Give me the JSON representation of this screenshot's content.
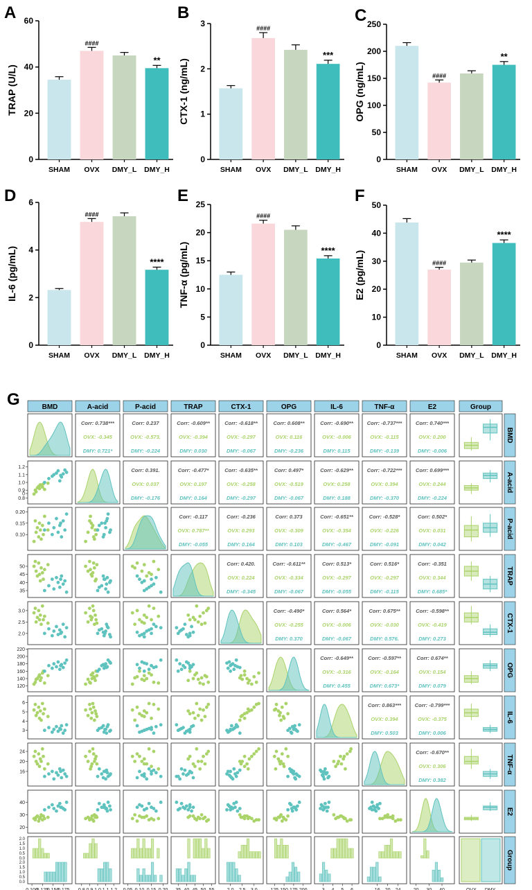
{
  "figure": {
    "section_g_label": "G"
  },
  "colors": {
    "SHAM": "#c8e6ec",
    "OVX": "#f9d7da",
    "DMY_L": "#c7d7bf",
    "DMY_H": "#3fbcbc",
    "ovx_green": "#aad36a",
    "dmy_teal": "#5ec2be",
    "header_blue": "#9dd3e8"
  },
  "chart_data": [
    {
      "id": "A",
      "type": "bar",
      "label": "A",
      "ylabel": "TRAP (U/L)",
      "categories": [
        "SHAM",
        "OVX",
        "DMY_L",
        "DMY_H"
      ],
      "values": [
        34.5,
        47.0,
        45.0,
        39.5
      ],
      "errors": [
        1.3,
        1.5,
        1.3,
        1.2
      ],
      "ylim": [
        0,
        60
      ],
      "yticks": [
        0,
        20,
        40,
        60
      ],
      "annotations": [
        "",
        "####",
        "",
        "**"
      ]
    },
    {
      "id": "B",
      "type": "bar",
      "label": "B",
      "ylabel": "CTX-1 (ng/mL)",
      "categories": [
        "SHAM",
        "OVX",
        "DMY_L",
        "DMY_H"
      ],
      "values": [
        1.57,
        2.68,
        2.42,
        2.11
      ],
      "errors": [
        0.06,
        0.12,
        0.11,
        0.08
      ],
      "ylim": [
        0,
        3
      ],
      "yticks": [
        0,
        1,
        2,
        3
      ],
      "annotations": [
        "",
        "####",
        "",
        "***"
      ]
    },
    {
      "id": "C",
      "type": "bar",
      "label": "C",
      "ylabel": "OPG (ng/mL)",
      "categories": [
        "SHAM",
        "OVX",
        "DMY_L",
        "DMY_H"
      ],
      "values": [
        210,
        142,
        159,
        175
      ],
      "errors": [
        6,
        5,
        5,
        6
      ],
      "ylim": [
        0,
        250
      ],
      "yticks": [
        0,
        50,
        100,
        150,
        200,
        250
      ],
      "annotations": [
        "",
        "####",
        "",
        "**"
      ]
    },
    {
      "id": "D",
      "type": "bar",
      "label": "D",
      "ylabel": "IL-6 (pg/mL)",
      "categories": [
        "SHAM",
        "OVX",
        "DMY_L",
        "DMY_H"
      ],
      "values": [
        2.32,
        5.18,
        5.42,
        3.17
      ],
      "errors": [
        0.06,
        0.14,
        0.14,
        0.11
      ],
      "ylim": [
        0,
        6
      ],
      "yticks": [
        0,
        2,
        4,
        6
      ],
      "annotations": [
        "",
        "####",
        "",
        "****"
      ]
    },
    {
      "id": "E",
      "type": "bar",
      "label": "E",
      "ylabel": "TNF-α (pg/mL)",
      "categories": [
        "SHAM",
        "OVX",
        "DMY_L",
        "DMY_H"
      ],
      "values": [
        12.5,
        21.6,
        20.5,
        15.4
      ],
      "errors": [
        0.5,
        0.6,
        0.7,
        0.5
      ],
      "ylim": [
        0,
        25
      ],
      "yticks": [
        0,
        5,
        10,
        15,
        20,
        25
      ],
      "annotations": [
        "",
        "####",
        "",
        "****"
      ]
    },
    {
      "id": "F",
      "type": "bar",
      "label": "F",
      "ylabel": "E2 (pg/mL)",
      "categories": [
        "SHAM",
        "OVX",
        "DMY_L",
        "DMY_H"
      ],
      "values": [
        43.8,
        27.0,
        29.5,
        36.5
      ],
      "errors": [
        1.4,
        0.8,
        0.9,
        1.1
      ],
      "ylim": [
        0,
        50
      ],
      "yticks": [
        0,
        10,
        20,
        30,
        40,
        50
      ],
      "annotations": [
        "",
        "####",
        "",
        "****"
      ]
    },
    {
      "id": "G",
      "type": "scatter",
      "label": "G",
      "subtype": "pair-plot",
      "variables": [
        "BMD",
        "A-acid",
        "P-acid",
        "TRAP",
        "CTX-1",
        "OPG",
        "IL-6",
        "TNF-α",
        "E2",
        "Group"
      ],
      "groups": [
        "OVX",
        "DMY"
      ],
      "upper": [
        [
          null,
          "Corr: 0.738***",
          "Corr: 0.237",
          "Corr: -0.609**",
          "Corr: -0.618**",
          "Corr: 0.608**",
          "Corr: -0.690**",
          "Corr: -0.737***",
          "Corr: 0.740***"
        ],
        [
          null,
          null,
          "Corr: 0.391.",
          "Corr: -0.477*",
          "Corr: -0.635**",
          "Corr: 0.497*",
          "Corr: -0.629**",
          "Corr: -0.722***",
          "Corr: 0.699***"
        ],
        [
          null,
          null,
          null,
          "Corr: -0.117",
          "Corr: -0.236",
          "Corr: 0.373",
          "Corr: -0.651**",
          "Corr: -0.528*",
          "Corr: 0.502*"
        ],
        [
          null,
          null,
          null,
          null,
          "Corr: 0.420.",
          "Corr: -0.611**",
          "Corr: 0.513*",
          "Corr: 0.516*",
          "Corr: -0.351"
        ],
        [
          null,
          null,
          null,
          null,
          null,
          "Corr: -0.490*",
          "Corr: 0.564*",
          "Corr: 0.675**",
          "Corr: -0.598**"
        ],
        [
          null,
          null,
          null,
          null,
          null,
          null,
          "Corr: -0.649**",
          "Corr: -0.597**",
          "Corr: 0.674**"
        ],
        [
          null,
          null,
          null,
          null,
          null,
          null,
          null,
          "Corr: 0.863***",
          "Corr: -0.799***"
        ],
        [
          null,
          null,
          null,
          null,
          null,
          null,
          null,
          null,
          "Corr: -0.670**"
        ]
      ],
      "upper_ovx": [
        [
          null,
          "OVX: -0.345",
          "OVX: -0.573.",
          "OVX: -0.394",
          "OVX: -0.297",
          "OVX: 0.116",
          "OVX: -0.006",
          "OVX: -0.115",
          "OVX: 0.200"
        ],
        [
          null,
          null,
          "OVX: 0.037",
          "OVX: 0.197",
          "OVX: -0.258",
          "OVX: -0.519",
          "OVX: 0.258",
          "OVX: 0.394",
          "OVX: 0.244"
        ],
        [
          null,
          null,
          null,
          "OVX: 0.787**",
          "OVX: 0.293",
          "OVX: -0.309",
          "OVX: -0.354",
          "OVX: -0.226",
          "OVX: 0.031"
        ],
        [
          null,
          null,
          null,
          null,
          "OVX: 0.224",
          "OVX: -0.334",
          "OVX: -0.297",
          "OVX: -0.297",
          "OVX: 0.344"
        ],
        [
          null,
          null,
          null,
          null,
          null,
          "OVX: -0.255",
          "OVX: -0.006",
          "OVX: -0.030",
          "OVX: -0.419"
        ],
        [
          null,
          null,
          null,
          null,
          null,
          null,
          "OVX: -0.316",
          "OVX: -0.164",
          "OVX: 0.154"
        ],
        [
          null,
          null,
          null,
          null,
          null,
          null,
          null,
          "OVX: 0.394",
          "OVX: -0.375"
        ],
        [
          null,
          null,
          null,
          null,
          null,
          null,
          null,
          null,
          "OVX: 0.306"
        ]
      ],
      "upper_dmy": [
        [
          null,
          "DMY: 0.721*",
          "DMY: -0.224",
          "DMY: 0.030",
          "DMY: -0.067",
          "DMY: -0.236",
          "DMY: 0.115",
          "DMY: -0.139",
          "DMY: -0.006"
        ],
        [
          null,
          null,
          "DMY: -0.176",
          "DMY: 0.164",
          "DMY: -0.297",
          "DMY: -0.067",
          "DMY: 0.188",
          "DMY: -0.370",
          "DMY: -0.224"
        ],
        [
          null,
          null,
          null,
          "DMY: -0.055",
          "DMY: 0.164",
          "DMY: 0.103",
          "DMY: -0.467",
          "DMY: -0.091",
          "DMY: 0.042"
        ],
        [
          null,
          null,
          null,
          null,
          "DMY: -0.345",
          "DMY: -0.067",
          "DMY: -0.055",
          "DMY: -0.115",
          "DMY: 0.685*"
        ],
        [
          null,
          null,
          null,
          null,
          null,
          "DMY: 0.370",
          "DMY: -0.067",
          "DMY: 0.576.",
          "DMY: 0.273"
        ],
        [
          null,
          null,
          null,
          null,
          null,
          null,
          "DMY: 0.455",
          "DMY: 0.673*",
          "DMY: 0.079"
        ],
        [
          null,
          null,
          null,
          null,
          null,
          null,
          null,
          "DMY: 0.503",
          "DMY: 0.006"
        ],
        [
          null,
          null,
          null,
          null,
          null,
          null,
          null,
          null,
          "DMY: 0.382"
        ]
      ],
      "axes": [
        {
          "name": "BMD",
          "ticks": [
            "0.100",
            "0.125",
            "0.150",
            "0.175"
          ],
          "lim": [
            0.095,
            0.19
          ],
          "row_ticks": [
            "0",
            "5",
            "10",
            "15",
            "20",
            "25"
          ],
          "row_lim": [
            0,
            27
          ]
        },
        {
          "name": "A-acid",
          "ticks": [
            "0.8",
            "0.9",
            "1.0",
            "1.1",
            "1.2"
          ],
          "lim": [
            0.75,
            1.25
          ],
          "row_ticks": [
            "0.8",
            "0.9",
            "1.0",
            "1.1",
            "1.2"
          ],
          "row_lim": [
            0.75,
            1.25
          ]
        },
        {
          "name": "P-acid",
          "ticks": [
            "0.05",
            "0.10",
            "0.15",
            "0.20"
          ],
          "lim": [
            0.04,
            0.21
          ],
          "row_ticks": [
            "0.10",
            "0.15",
            "0.20"
          ],
          "row_lim": [
            0.05,
            0.21
          ]
        },
        {
          "name": "TRAP",
          "ticks": [
            "35",
            "40",
            "45",
            "50",
            "55"
          ],
          "lim": [
            32,
            56
          ],
          "row_ticks": [
            "35",
            "40",
            "45",
            "50"
          ],
          "row_lim": [
            32,
            53
          ]
        },
        {
          "name": "CTX-1",
          "ticks": [
            "2.0",
            "2.5",
            "3.0"
          ],
          "lim": [
            1.6,
            3.3
          ],
          "row_ticks": [
            "2.0",
            "2.5",
            "3.0"
          ],
          "row_lim": [
            1.7,
            3.2
          ]
        },
        {
          "name": "OPG",
          "ticks": [
            "125",
            "150",
            "175",
            "200"
          ],
          "lim": [
            110,
            215
          ],
          "row_ticks": [
            "120",
            "140",
            "160",
            "180",
            "200",
            "220"
          ],
          "row_lim": [
            115,
            222
          ]
        },
        {
          "name": "IL-6",
          "ticks": [
            "3",
            "4",
            "5",
            "6"
          ],
          "lim": [
            2.3,
            6.5
          ],
          "row_ticks": [
            "3",
            "4",
            "5",
            "6"
          ],
          "row_lim": [
            2.3,
            6.3
          ]
        },
        {
          "name": "TNF-α",
          "ticks": [
            "16",
            "20",
            "24"
          ],
          "lim": [
            11,
            26.5
          ],
          "row_ticks": [
            "16",
            "20",
            "24"
          ],
          "row_lim": [
            12,
            26
          ]
        },
        {
          "name": "E2",
          "ticks": [
            "20",
            "30",
            "40"
          ],
          "lim": [
            17,
            48
          ],
          "row_ticks": [
            "20",
            "30",
            "40"
          ],
          "row_lim": [
            17,
            46
          ]
        }
      ],
      "group_axis": {
        "ticks": [
          "OVX",
          "DMY"
        ],
        "hist_ticks": [
          "0.0",
          "0.5",
          "1.0",
          "1.5",
          "2.0"
        ]
      },
      "series": [
        {
          "name": "OVX",
          "BMD": [
            0.105,
            0.108,
            0.11,
            0.113,
            0.116,
            0.118,
            0.12,
            0.122,
            0.125,
            0.127,
            0.13,
            0.138
          ],
          "A-acid": [
            0.85,
            0.9,
            0.88,
            0.93,
            0.95,
            0.92,
            0.97,
            0.96,
            0.94,
            0.98,
            0.91,
            0.99
          ],
          "P-acid": [
            0.07,
            0.16,
            0.11,
            0.13,
            0.09,
            0.15,
            0.12,
            0.08,
            0.14,
            0.1,
            0.18,
            0.12
          ],
          "TRAP": [
            50,
            53,
            47,
            44,
            52,
            45,
            41,
            49,
            46,
            42,
            48,
            51
          ],
          "CTX-1": [
            2.9,
            3.1,
            2.5,
            2.7,
            3.0,
            2.6,
            2.8,
            2.4,
            3.2,
            2.6,
            2.75,
            2.45
          ],
          "OPG": [
            125,
            130,
            138,
            140,
            145,
            150,
            135,
            142,
            155,
            160,
            128,
            148
          ],
          "IL-6": [
            5.2,
            5.8,
            4.6,
            4.9,
            5.5,
            4.3,
            5.1,
            4.1,
            5.9,
            4.8,
            5.3,
            4.5
          ],
          "TNF-α": [
            22,
            24,
            20,
            19,
            23,
            18,
            21,
            20,
            25,
            22,
            17,
            19
          ],
          "E2": [
            27,
            26,
            28,
            29,
            25,
            27,
            28,
            30,
            26,
            29,
            27,
            28
          ]
        },
        {
          "name": "DMY",
          "BMD": [
            0.13,
            0.14,
            0.148,
            0.152,
            0.158,
            0.162,
            0.166,
            0.17,
            0.174,
            0.178,
            0.182,
            0.168
          ],
          "A-acid": [
            1.0,
            1.05,
            1.08,
            1.1,
            1.12,
            1.15,
            1.02,
            1.07,
            1.11,
            1.16,
            1.13,
            1.09
          ],
          "P-acid": [
            0.12,
            0.15,
            0.1,
            0.13,
            0.17,
            0.11,
            0.14,
            0.09,
            0.16,
            0.12,
            0.19,
            0.15
          ],
          "TRAP": [
            35,
            38,
            42,
            36,
            43,
            40,
            37,
            44,
            39,
            41,
            34,
            42
          ],
          "CTX-1": [
            2.0,
            2.2,
            1.9,
            2.1,
            2.3,
            1.95,
            2.15,
            2.05,
            2.4,
            1.85,
            2.25,
            2.0
          ],
          "OPG": [
            160,
            175,
            168,
            180,
            172,
            185,
            165,
            178,
            170,
            182,
            190,
            175
          ],
          "IL-6": [
            3.0,
            3.3,
            2.8,
            3.1,
            3.4,
            2.9,
            3.2,
            3.5,
            2.7,
            3.0,
            3.6,
            3.1
          ],
          "TNF-α": [
            14,
            15,
            16,
            13,
            15.5,
            14.5,
            17,
            13.5,
            16.5,
            15,
            14,
            16
          ],
          "E2": [
            34,
            36,
            38,
            35,
            33,
            37,
            39,
            36,
            35,
            34,
            40,
            36
          ]
        }
      ]
    }
  ]
}
